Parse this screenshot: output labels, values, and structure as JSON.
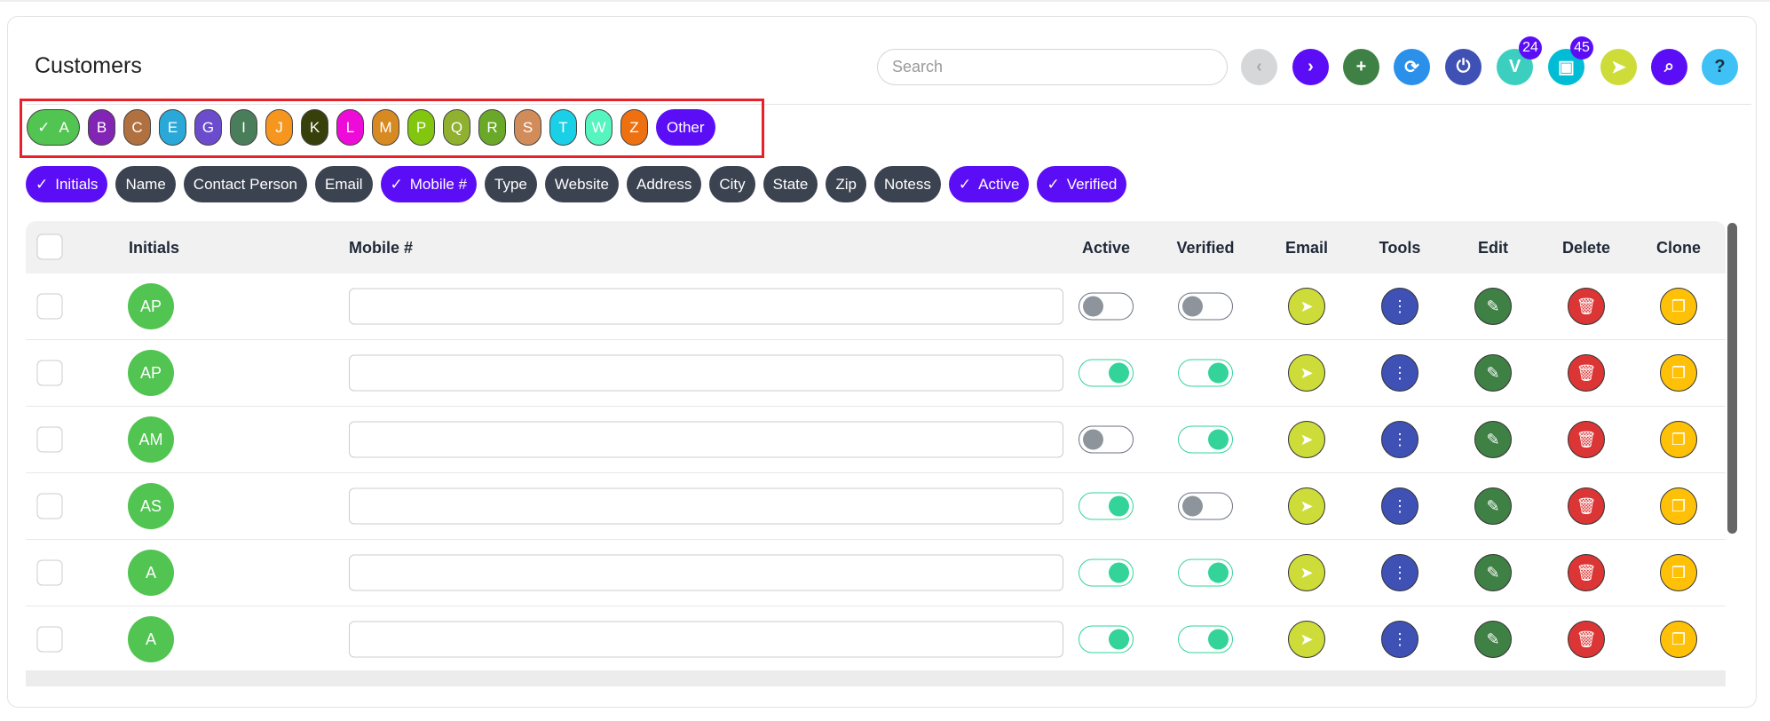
{
  "title": "Customers",
  "search": {
    "placeholder": "Search",
    "value": ""
  },
  "toolbar": [
    {
      "name": "prev-button",
      "icon": "chevron-left-icon",
      "glyph": "‹",
      "color": "#d6d7d9",
      "fg": "#aaa"
    },
    {
      "name": "next-button",
      "icon": "chevron-right-icon",
      "glyph": "›",
      "color": "#5b0ef5"
    },
    {
      "name": "add-button",
      "icon": "plus-icon",
      "glyph": "+",
      "color": "#3f8045"
    },
    {
      "name": "refresh-button",
      "icon": "refresh-icon",
      "glyph": "⟳",
      "color": "#2a90ea"
    },
    {
      "name": "power-button",
      "icon": "power-icon",
      "glyph": "⏻",
      "color": "#3f51b5"
    },
    {
      "name": "v-button",
      "icon": "v-icon",
      "glyph": "V",
      "color": "#3ccfbf",
      "badge": "24"
    },
    {
      "name": "messages-button",
      "icon": "messages-icon",
      "glyph": "▣",
      "color": "#00bcd4",
      "badge": "45"
    },
    {
      "name": "send-button",
      "icon": "paper-plane-icon",
      "glyph": "➤",
      "color": "#cddc39"
    },
    {
      "name": "search-button",
      "icon": "search-icon",
      "glyph": "⌕",
      "color": "#5b0ef5"
    },
    {
      "name": "help-button",
      "icon": "question-icon",
      "glyph": "?",
      "color": "#3fc1f5",
      "fg": "#1f2d3d"
    }
  ],
  "letters": [
    {
      "label": "A",
      "color": "#52c452",
      "checked": true
    },
    {
      "label": "B",
      "color": "#8224b4"
    },
    {
      "label": "C",
      "color": "#b07040"
    },
    {
      "label": "E",
      "color": "#2aa8d8"
    },
    {
      "label": "G",
      "color": "#6a4ccc"
    },
    {
      "label": "I",
      "color": "#4a7d5a"
    },
    {
      "label": "J",
      "color": "#f7961f"
    },
    {
      "label": "K",
      "color": "#37400a"
    },
    {
      "label": "L",
      "color": "#ee0ad8"
    },
    {
      "label": "M",
      "color": "#d88a22"
    },
    {
      "label": "P",
      "color": "#82c610"
    },
    {
      "label": "Q",
      "color": "#90b030"
    },
    {
      "label": "R",
      "color": "#6aa82a"
    },
    {
      "label": "S",
      "color": "#d28c5a"
    },
    {
      "label": "T",
      "color": "#1ad0e6"
    },
    {
      "label": "W",
      "color": "#55f5c0"
    },
    {
      "label": "Z",
      "color": "#ee7010"
    },
    {
      "label": "Other",
      "color": "#5b0ef5"
    }
  ],
  "columns": [
    {
      "label": "Initials",
      "checked": true
    },
    {
      "label": "Name"
    },
    {
      "label": "Contact Person"
    },
    {
      "label": "Email"
    },
    {
      "label": "Mobile #",
      "checked": true
    },
    {
      "label": "Type"
    },
    {
      "label": "Website"
    },
    {
      "label": "Address"
    },
    {
      "label": "City"
    },
    {
      "label": "State"
    },
    {
      "label": "Zip"
    },
    {
      "label": "Notess"
    },
    {
      "label": "Active",
      "checked": true
    },
    {
      "label": "Verified",
      "checked": true
    }
  ],
  "headers": {
    "initials": "Initials",
    "mobile": "Mobile #",
    "active": "Active",
    "verified": "Verified",
    "email": "Email",
    "tools": "Tools",
    "edit": "Edit",
    "delete": "Delete",
    "clone": "Clone"
  },
  "rows": [
    {
      "initials": "AP",
      "mobile": "",
      "active": false,
      "verified": false
    },
    {
      "initials": "AP",
      "mobile": "",
      "active": true,
      "verified": true
    },
    {
      "initials": "AM",
      "mobile": "",
      "active": false,
      "verified": true
    },
    {
      "initials": "AS",
      "mobile": "",
      "active": true,
      "verified": false
    },
    {
      "initials": "A",
      "mobile": "",
      "active": true,
      "verified": true
    },
    {
      "initials": "A",
      "mobile": "",
      "active": true,
      "verified": true
    }
  ],
  "action_colors": {
    "email": "#cddc39",
    "tools": "#3f51b5",
    "edit": "#3f8045",
    "delete": "#dc3535",
    "clone": "#ffc107"
  }
}
